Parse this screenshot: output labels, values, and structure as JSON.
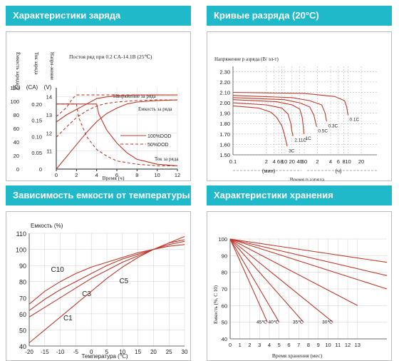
{
  "panels": [
    {
      "header": "Характеристики заряда"
    },
    {
      "header": "Кривые разряда (20°C)"
    },
    {
      "header": "Зависимость емкости от температуры"
    },
    {
      "header": "Характеристики хранения"
    }
  ],
  "chart_data": [
    {
      "type": "line",
      "title": "Постоя ряд при 0.2 CA-14.1B (25℃)",
      "xlabel": "Время (ч)",
      "x_ticks": [
        "0",
        "2",
        "4",
        "6",
        "8",
        "10",
        "12"
      ],
      "xlim": [
        0,
        12
      ],
      "axis_headers": {
        "capacity": "Ёмкость заряда",
        "current": "Ток заряда",
        "voltage": "Напря-жение"
      },
      "axis_units": {
        "capacity": "(C)",
        "current": "(CA)",
        "voltage": "(V)"
      },
      "ticks_capacity": [
        "0",
        "20",
        "40",
        "60",
        "80",
        "100",
        "120"
      ],
      "ticks_current": [
        "0",
        "0.05",
        "0.10",
        "0.15",
        "0.20"
      ],
      "ticks_voltage": [
        "11",
        "12",
        "13",
        "14"
      ],
      "annotations": {
        "voltage": "Напряжение за ряда",
        "capacity": "Емкость за ряда",
        "current": "Ток за ряда"
      },
      "legend": [
        "100%DOD",
        "50%DOD"
      ],
      "series": [
        {
          "name": "100%DOD",
          "kind": "voltage",
          "x": [
            0,
            1,
            2,
            3,
            4,
            5,
            6,
            8,
            10,
            12
          ],
          "y": [
            12.6,
            13.0,
            13.3,
            13.6,
            13.9,
            14.0,
            14.05,
            14.1,
            14.1,
            14.1
          ]
        },
        {
          "name": "50%DOD",
          "kind": "voltage",
          "x": [
            0,
            1,
            1.6,
            2,
            3,
            4,
            6,
            8,
            10,
            12
          ],
          "y": [
            12.9,
            13.4,
            13.9,
            14.1,
            14.1,
            14.1,
            14.1,
            14.1,
            14.1,
            14.1
          ]
        },
        {
          "name": "100%DOD",
          "kind": "capacity",
          "x": [
            0,
            1,
            2,
            3,
            4,
            5,
            6,
            7,
            8,
            10,
            12
          ],
          "y": [
            0,
            18,
            36,
            54,
            70,
            82,
            90,
            96,
            99,
            101,
            102
          ]
        },
        {
          "name": "50%DOD",
          "kind": "capacity",
          "x": [
            0,
            1,
            2,
            3,
            4,
            5,
            6,
            8,
            10,
            12
          ],
          "y": [
            47,
            62,
            76,
            86,
            93,
            97,
            99,
            101,
            102,
            102
          ]
        },
        {
          "name": "100%DOD",
          "kind": "current",
          "x": [
            0,
            4,
            4.2,
            5,
            6,
            7,
            8,
            10,
            12
          ],
          "y": [
            0.2,
            0.2,
            0.17,
            0.12,
            0.08,
            0.05,
            0.03,
            0.015,
            0.01
          ]
        },
        {
          "name": "50%DOD",
          "kind": "current",
          "x": [
            0,
            2,
            2.2,
            3,
            4,
            5,
            6,
            8,
            10,
            12
          ],
          "y": [
            0.2,
            0.2,
            0.16,
            0.1,
            0.06,
            0.04,
            0.025,
            0.015,
            0.01,
            0.01
          ]
        }
      ]
    },
    {
      "type": "line",
      "ylabel": "Напряжение р азряда (В/ эл-т)",
      "xlabel": "Время р азряда",
      "y_ticks": [
        "1.50",
        "1.60",
        "1.70",
        "1.80",
        "1.90",
        "2.00",
        "2.10",
        "2.20",
        "2.30"
      ],
      "ylim": [
        1.5,
        2.35
      ],
      "x_ticks": [
        "0.1",
        "2",
        "4",
        "6",
        "8",
        "10",
        "20",
        "40",
        "60",
        "2",
        "4",
        "6",
        "8",
        "10",
        "20"
      ],
      "x_ticks_log_min": [
        0.1,
        2,
        4,
        6,
        8,
        10,
        20,
        40,
        60
      ],
      "x_ticks_log_h": [
        2,
        4,
        6,
        8,
        10,
        20
      ],
      "x_units": [
        "(мин)",
        "(ч)"
      ],
      "series": [
        {
          "name": "3C",
          "x": [
            0.1,
            1,
            3,
            5,
            8,
            10,
            12,
            13
          ],
          "y": [
            1.97,
            1.95,
            1.91,
            1.86,
            1.78,
            1.7,
            1.62,
            1.58
          ]
        },
        {
          "name": "2.11C",
          "x": [
            0.1,
            2,
            8,
            14,
            18,
            20,
            22
          ],
          "y": [
            2.0,
            1.98,
            1.95,
            1.89,
            1.8,
            1.72,
            1.68
          ]
        },
        {
          "name": "1C",
          "x": [
            0.1,
            5,
            20,
            40,
            50,
            55,
            58
          ],
          "y": [
            2.03,
            2.01,
            1.98,
            1.94,
            1.86,
            1.78,
            1.7
          ]
        },
        {
          "name": "0.5C",
          "x": [
            0.1,
            10,
            40,
            80,
            100,
            110,
            115
          ],
          "y": [
            2.05,
            2.03,
            2.0,
            1.96,
            1.88,
            1.8,
            1.77
          ]
        },
        {
          "name": "0.3C",
          "x": [
            0.1,
            20,
            80,
            150,
            180,
            190,
            195
          ],
          "y": [
            2.07,
            2.05,
            2.02,
            1.98,
            1.9,
            1.84,
            1.82
          ]
        },
        {
          "name": "0.1C",
          "x": [
            0.1,
            60,
            300,
            500,
            560,
            590,
            600
          ],
          "y": [
            2.1,
            2.09,
            2.06,
            2.02,
            1.96,
            1.9,
            1.88
          ]
        }
      ]
    },
    {
      "type": "line",
      "ylabel": "Емкость (%)",
      "xlabel": "Температура (℃)",
      "x_ticks": [
        "-20",
        "-15",
        "-10",
        "-5",
        "0",
        "5",
        "10",
        "15",
        "20",
        "25",
        "30"
      ],
      "xlim": [
        -20,
        30
      ],
      "y_ticks": [
        "40",
        "50",
        "60",
        "70",
        "80",
        "90",
        "100",
        "110"
      ],
      "ylim": [
        40,
        110
      ],
      "series": [
        {
          "name": "C10",
          "x": [
            -20,
            -15,
            -10,
            -5,
            0,
            5,
            10,
            15,
            20,
            25,
            30
          ],
          "y": [
            66,
            74,
            80,
            85,
            89,
            92,
            95,
            98,
            100,
            102,
            103
          ]
        },
        {
          "name": "C5",
          "x": [
            -20,
            -15,
            -10,
            -5,
            0,
            5,
            10,
            15,
            20,
            25,
            30
          ],
          "y": [
            62,
            69,
            75,
            80,
            85,
            90,
            94,
            97,
            100,
            103,
            105
          ]
        },
        {
          "name": "C3",
          "x": [
            -20,
            -15,
            -10,
            -5,
            0,
            5,
            10,
            15,
            20,
            25,
            30
          ],
          "y": [
            58,
            64,
            70,
            76,
            82,
            87,
            92,
            96,
            100,
            104,
            106
          ]
        },
        {
          "name": "C1",
          "x": [
            -20,
            -15,
            -10,
            -5,
            0,
            5,
            10,
            15,
            20,
            25,
            30
          ],
          "y": [
            42,
            50,
            58,
            66,
            74,
            82,
            89,
            95,
            100,
            104,
            108
          ]
        }
      ]
    },
    {
      "type": "line",
      "ylabel": "Емкость (%, С 10)",
      "xlabel": "Время хранения (мес)",
      "x_ticks": [
        "0",
        "1",
        "2",
        "3",
        "4",
        "5",
        "6",
        "7",
        "8",
        "9",
        "10",
        "11",
        "12",
        "13"
      ],
      "xlim": [
        0,
        16
      ],
      "y_ticks": [
        "40",
        "50",
        "60",
        "70",
        "80",
        "90",
        "100"
      ],
      "ylim": [
        40,
        100
      ],
      "series": [
        {
          "name": "45℃",
          "x": [
            0,
            3.8
          ],
          "y": [
            100,
            50
          ]
        },
        {
          "name": "40℃",
          "x": [
            0,
            5
          ],
          "y": [
            100,
            50
          ]
        },
        {
          "name": "35℃",
          "x": [
            0,
            7.5
          ],
          "y": [
            100,
            50
          ]
        },
        {
          "name": "30℃",
          "x": [
            0,
            10.5
          ],
          "y": [
            100,
            50
          ]
        },
        {
          "name": "",
          "x": [
            0,
            13
          ],
          "y": [
            100,
            60
          ]
        },
        {
          "name": "",
          "x": [
            0,
            16
          ],
          "y": [
            100,
            70
          ]
        },
        {
          "name": "",
          "x": [
            0,
            16
          ],
          "y": [
            100,
            78
          ]
        },
        {
          "name": "",
          "x": [
            0,
            16
          ],
          "y": [
            100,
            86
          ]
        }
      ]
    }
  ],
  "colors": {
    "header": "#1fb9c9",
    "curve": "#c0392b",
    "grid": "#9a9a9a",
    "border": "#bdbdbd"
  }
}
